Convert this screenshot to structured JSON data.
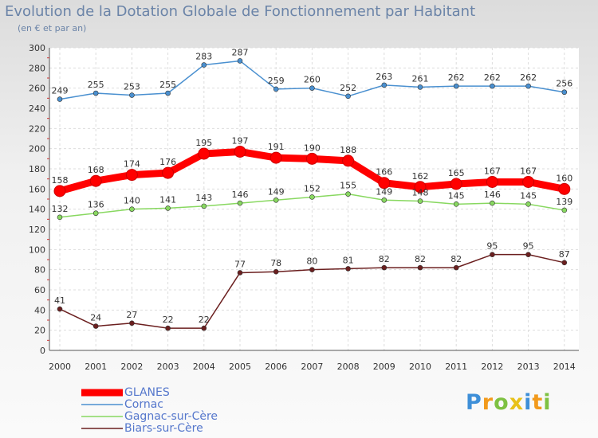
{
  "chart_data": {
    "type": "line",
    "title": "Evolution de la Dotation Globale de Fonctionnement par Habitant",
    "subtitle": "(en € et par an)",
    "xlabel": "",
    "ylabel": "",
    "categories": [
      "2000",
      "2001",
      "2002",
      "2003",
      "2004",
      "2005",
      "2006",
      "2007",
      "2008",
      "2009",
      "2010",
      "2011",
      "2012",
      "2013",
      "2014"
    ],
    "ylim": [
      0,
      300
    ],
    "yticks": [
      0,
      20,
      40,
      60,
      80,
      100,
      120,
      140,
      160,
      180,
      200,
      220,
      240,
      260,
      280,
      300
    ],
    "grid": true,
    "series": [
      {
        "name": "GLANES",
        "color": "#ff0000",
        "values": [
          158,
          168,
          174,
          176,
          195,
          197,
          191,
          190,
          188,
          166,
          162,
          165,
          167,
          167,
          160
        ]
      },
      {
        "name": "Cornac",
        "color": "#4a90d0",
        "values": [
          249,
          255,
          253,
          255,
          283,
          287,
          259,
          260,
          252,
          263,
          261,
          262,
          262,
          262,
          256
        ]
      },
      {
        "name": "Gagnac-sur-Cère",
        "color": "#88d860",
        "values": [
          132,
          136,
          140,
          141,
          143,
          146,
          149,
          152,
          155,
          149,
          148,
          145,
          146,
          145,
          139
        ]
      },
      {
        "name": "Biars-sur-Cère",
        "color": "#6b1f1f",
        "values": [
          41,
          24,
          27,
          22,
          22,
          77,
          78,
          80,
          81,
          82,
          82,
          82,
          95,
          95,
          87
        ]
      }
    ]
  },
  "logo": {
    "letters": [
      "P",
      "r",
      "o",
      "x",
      "i",
      "t",
      "i"
    ]
  }
}
